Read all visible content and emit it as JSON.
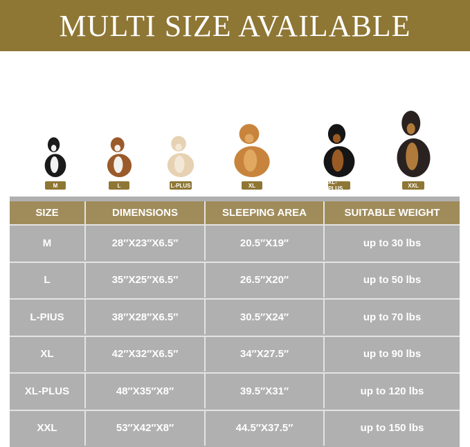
{
  "title": "MULTI SIZE AVAILABLE",
  "dogs": [
    {
      "label": "M",
      "colors": [
        "#1a1a1a",
        "#f0f0f0"
      ]
    },
    {
      "label": "L",
      "colors": [
        "#9a5a2a",
        "#f2f0ec"
      ]
    },
    {
      "label": "L-PLUS",
      "colors": [
        "#e6d2b2",
        "#f3e8d6"
      ]
    },
    {
      "label": "XL",
      "colors": [
        "#c8843c",
        "#e0a861"
      ]
    },
    {
      "label": "XL-PLUS",
      "colors": [
        "#151515",
        "#9a5a24"
      ]
    },
    {
      "label": "XXL",
      "colors": [
        "#2a2220",
        "#b07a3a"
      ]
    }
  ],
  "colors": {
    "gold": "#8e7634",
    "header": "#a08c5b",
    "cell": "#b0b0b0"
  },
  "table": {
    "headers": [
      "SIZE",
      "DIMENSIONS",
      "SLEEPING AREA",
      "SUITABLE WEIGHT"
    ],
    "rows": [
      [
        "M",
        "28″X23″X6.5″",
        "20.5″X19″",
        "up to 30 lbs"
      ],
      [
        "L",
        "35″X25″X6.5″",
        "26.5″X20″",
        "up to 50 lbs"
      ],
      [
        "L-PIUS",
        "38″X28″X6.5″",
        "30.5″X24″",
        "up to 70 lbs"
      ],
      [
        "XL",
        "42″X32″X6.5″",
        "34″X27.5″",
        "up to 90 lbs"
      ],
      [
        "XL-PLUS",
        "48″X35″X8″",
        "39.5″X31″",
        "up to 120 lbs"
      ],
      [
        "XXL",
        "53″X42″X8″",
        "44.5″X37.5″",
        "up to 150 lbs"
      ]
    ]
  }
}
